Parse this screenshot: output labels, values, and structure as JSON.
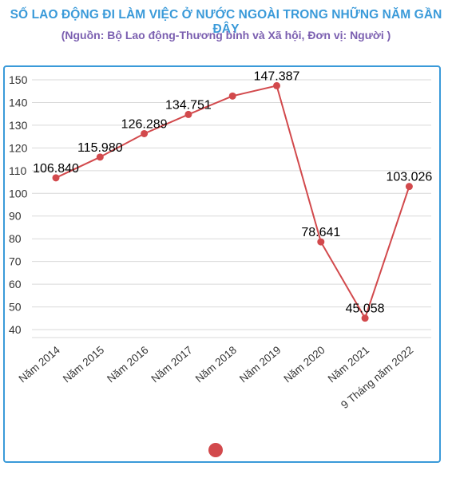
{
  "header": {
    "title": "SỐ LAO ĐỘNG ĐI LÀM VIỆC Ở NƯỚC NGOÀI TRONG NHỮNG NĂM GẦN ĐÂY",
    "subtitle": "(Nguồn: Bộ Lao động-Thương binh và Xã hội, Đơn vị: Người )"
  },
  "colors": {
    "title": "#3a9ad9",
    "subtitle": "#7b5fb0",
    "series": "#d2494c",
    "frame": "#3a9ad9"
  },
  "chart_data": {
    "type": "line",
    "title": "SỐ LAO ĐỘNG ĐI LÀM VIỆC Ở NƯỚC NGOÀI TRONG NHỮNG NĂM GẦN ĐÂY",
    "subtitle": "(Nguồn: Bộ Lao động-Thương binh và Xã hội, Đơn vị: Người )",
    "xlabel": "",
    "ylabel": "",
    "categories": [
      "Năm 2014",
      "Năm 2015",
      "Năm 2016",
      "Năm 2017",
      "Năm 2018",
      "Năm 2019",
      "Năm 2020",
      "Năm 2021",
      "9 Tháng năm 2022"
    ],
    "series": [
      {
        "name": "",
        "values": [
          106.84,
          115.98,
          126.289,
          134.751,
          142.86,
          147.387,
          78.641,
          45.058,
          103.026
        ],
        "labels": [
          "106.840",
          "115.980",
          "126.289",
          "134.751",
          "",
          "147.387",
          "78.641",
          "45.058",
          "103.026"
        ]
      }
    ],
    "yticks": [
      40,
      50,
      60,
      70,
      80,
      90,
      100,
      110,
      120,
      130,
      140,
      150
    ],
    "ylim": [
      36.5,
      150
    ],
    "grid": true,
    "legend": "bottom"
  }
}
